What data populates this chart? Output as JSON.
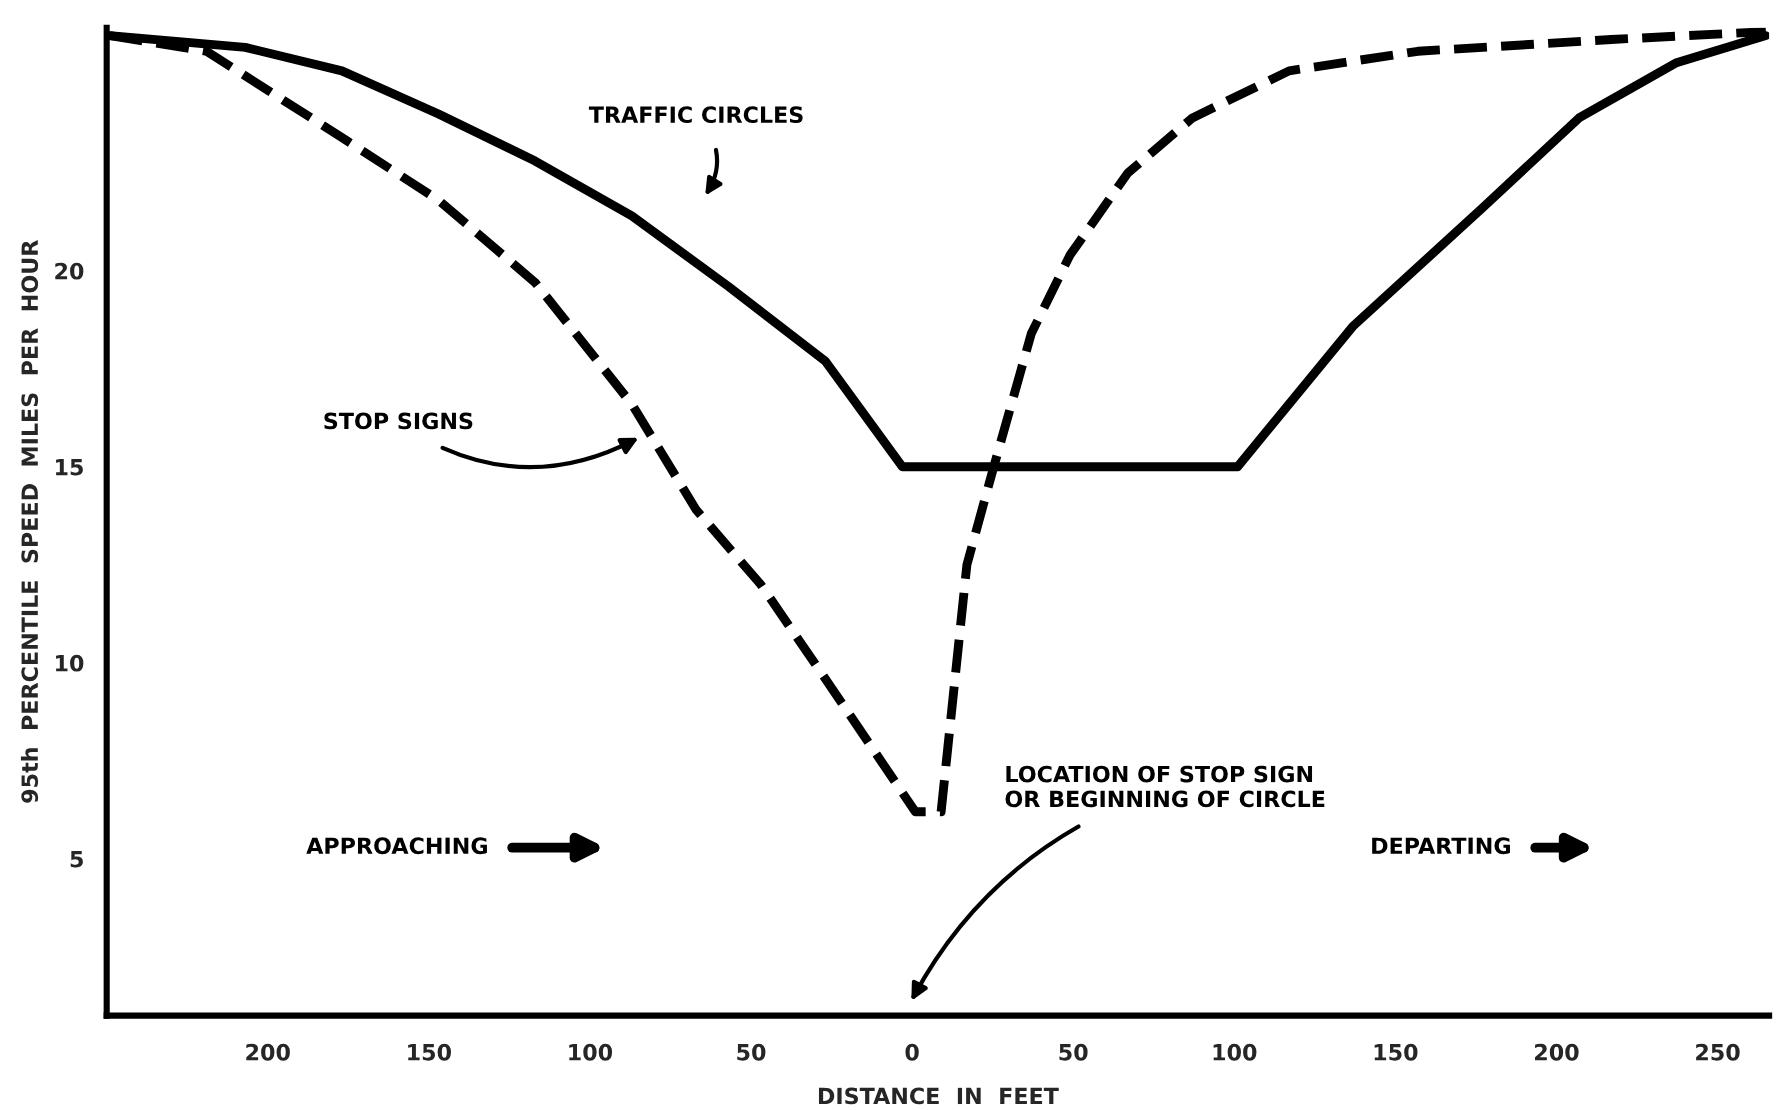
{
  "chart_data": {
    "type": "line",
    "xlabel": "DISTANCE  IN  FEET",
    "ylabel": "95th  PERCENTILE  SPEED  MILES  PER  HOUR",
    "series": [
      {
        "color": "#000000",
        "line_style": "solid",
        "x": [
          -249,
          -207,
          -177,
          -147,
          -117,
          -87,
          -57,
          -27,
          -3,
          101,
          137,
          177,
          207,
          237,
          265
        ],
        "values": [
          26.0,
          25.7,
          25.1,
          24.0,
          22.8,
          21.4,
          19.6,
          17.7,
          15.0,
          15.0,
          18.6,
          21.6,
          23.9,
          25.3,
          26.0
        ]
      },
      {
        "color": "#000000",
        "line_style": "dashed",
        "x": [
          -249,
          -219,
          -177,
          -147,
          -117,
          -87,
          -67,
          -47,
          -27,
          1,
          9,
          17,
          25,
          37,
          49,
          67,
          87,
          117,
          157,
          217,
          265
        ],
        "values": [
          26.0,
          25.6,
          23.4,
          21.8,
          19.7,
          16.6,
          13.9,
          12.0,
          9.6,
          6.2,
          6.2,
          12.5,
          14.9,
          18.4,
          20.4,
          22.5,
          23.9,
          25.1,
          25.6,
          25.9,
          26.1
        ]
      }
    ],
    "xlim": [
      -250,
      266
    ],
    "ylim": [
      1,
      26.2
    ],
    "xticks": [
      {
        "value": -200,
        "label": "200"
      },
      {
        "value": -150,
        "label": "150"
      },
      {
        "value": -100,
        "label": "100"
      },
      {
        "value": -50,
        "label": "50"
      },
      0,
      50,
      100,
      150,
      200,
      250
    ],
    "yticks": [
      5,
      10,
      15,
      20
    ],
    "grid": false,
    "annotations": [
      "TRAFFIC CIRCLES",
      "STOP SIGNS",
      "LOCATION OF STOP SIGN\nOR BEGINNING OF CIRCLE",
      "APPROACHING",
      "DEPARTING"
    ]
  }
}
